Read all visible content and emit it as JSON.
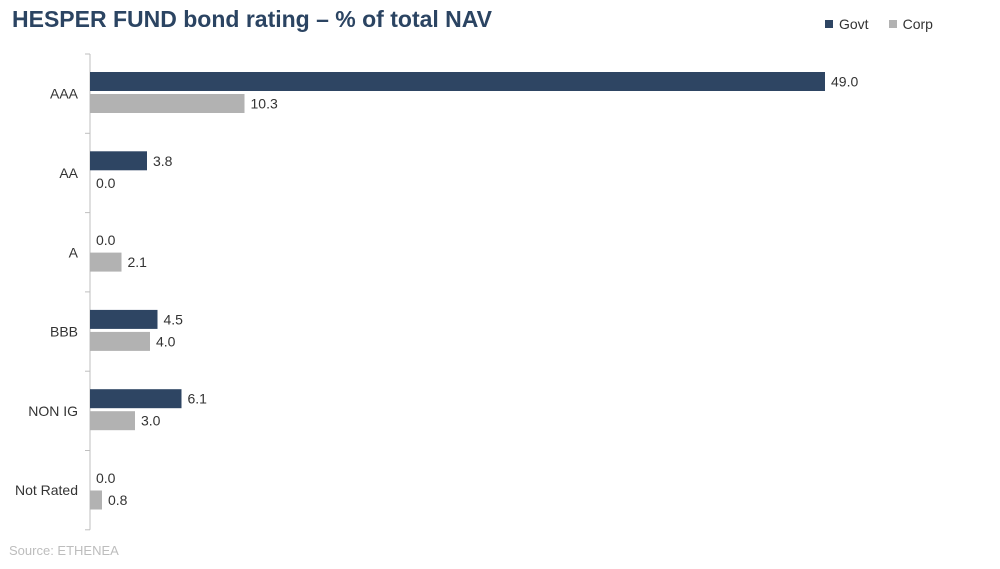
{
  "chart_data": {
    "type": "bar",
    "orientation": "horizontal",
    "title": "HESPER FUND bond rating – % of total NAV",
    "categories": [
      "AAA",
      "AA",
      "A",
      "BBB",
      "NON IG",
      "Not Rated"
    ],
    "series": [
      {
        "name": "Govt",
        "values": [
          49.0,
          3.8,
          0.0,
          4.5,
          6.1,
          0.0
        ],
        "labels": [
          "49.0",
          "3.8",
          "0.0",
          "4.5",
          "6.1",
          "0.0"
        ],
        "color": "#2e4563"
      },
      {
        "name": "Corp",
        "values": [
          10.3,
          0.0,
          2.1,
          4.0,
          3.0,
          0.8
        ],
        "labels": [
          "10.3",
          "0.0",
          "2.1",
          "4.0",
          "3.0",
          "0.8"
        ],
        "color": "#b2b2b2"
      }
    ],
    "xlim": [
      0,
      55
    ],
    "grid": false,
    "legend_position": "top-right",
    "source": "Source: ETHENEA"
  }
}
